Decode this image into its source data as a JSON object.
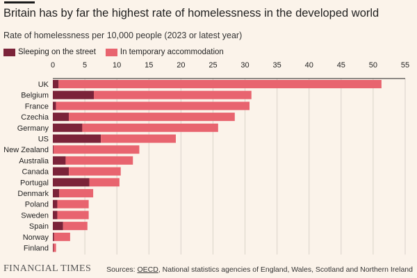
{
  "header": {
    "title": "Britain has by far the highest rate of homelessness in the developed world",
    "subtitle": "Rate of homelessness per 10,000 people (2023 or latest year)"
  },
  "legend": {
    "street_label": "Sleeping on the street",
    "temp_label": "In temporary accommodation"
  },
  "colors": {
    "street": "#7b2339",
    "temp": "#e8646f",
    "background": "#fbf3ea",
    "gridline": "#d9d2c9"
  },
  "footer": {
    "brand": "FINANCIAL TIMES",
    "source_prefix": "Sources: ",
    "source_link": "OECD",
    "source_rest": ", National statistics agencies of England, Wales, Scotland and Northern Ireland"
  },
  "chart_data": {
    "type": "bar",
    "orientation": "horizontal",
    "stacked": true,
    "title": "Britain has by far the highest rate of homelessness in the developed world",
    "subtitle": "Rate of homelessness per 10,000 people (2023 or latest year)",
    "xlim": [
      0,
      55
    ],
    "xticks": [
      0,
      5,
      10,
      15,
      20,
      25,
      30,
      35,
      40,
      45,
      50,
      55
    ],
    "grid": true,
    "legend_position": "top-left",
    "categories": [
      "UK",
      "Belgium",
      "France",
      "Czechia",
      "Germany",
      "US",
      "New Zealand",
      "Australia",
      "Canada",
      "Portugal",
      "Denmark",
      "Poland",
      "Sweden",
      "Spain",
      "Norway",
      "Finland"
    ],
    "series": [
      {
        "name": "Sleeping on the street",
        "values": [
          0.9,
          6.4,
          0.5,
          2.5,
          4.6,
          7.5,
          0.1,
          2.0,
          2.5,
          5.7,
          1.0,
          0.7,
          0.7,
          1.6,
          0.2,
          0.1
        ]
      },
      {
        "name": "In temporary accommodation",
        "values": [
          50.4,
          24.6,
          30.2,
          25.9,
          21.2,
          11.7,
          13.4,
          10.5,
          8.1,
          4.7,
          5.3,
          4.9,
          4.9,
          3.8,
          2.5,
          0.4
        ]
      }
    ]
  }
}
